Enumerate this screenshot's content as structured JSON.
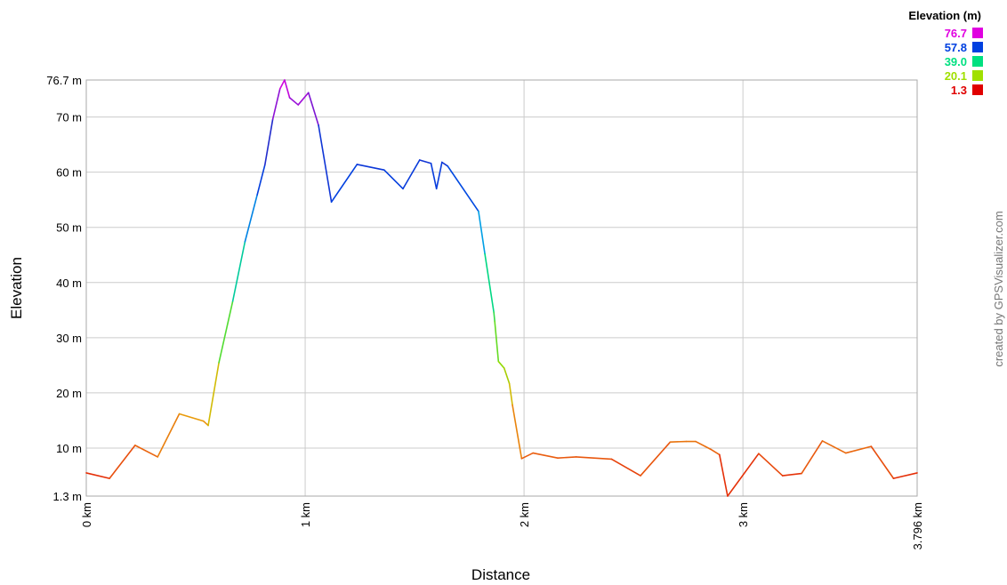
{
  "chart_data": {
    "type": "line",
    "xlabel": "Distance",
    "ylabel": "Elevation",
    "credit": "created by GPSVisualizer.com",
    "xlim": [
      0,
      3.796
    ],
    "ylim": [
      1.3,
      76.7
    ],
    "xticks": [
      {
        "v": 0,
        "label": "0 km"
      },
      {
        "v": 1,
        "label": "1 km"
      },
      {
        "v": 2,
        "label": "2 km"
      },
      {
        "v": 3,
        "label": "3 km"
      },
      {
        "v": 3.796,
        "label": "3.796 km"
      }
    ],
    "yticks": [
      {
        "v": 1.3,
        "label": "1.3 m"
      },
      {
        "v": 10,
        "label": "10 m"
      },
      {
        "v": 20,
        "label": "20 m"
      },
      {
        "v": 30,
        "label": "30 m"
      },
      {
        "v": 40,
        "label": "40 m"
      },
      {
        "v": 50,
        "label": "50 m"
      },
      {
        "v": 60,
        "label": "60 m"
      },
      {
        "v": 70,
        "label": "70 m"
      },
      {
        "v": 76.7,
        "label": "76.7 m"
      }
    ],
    "grid": true,
    "legend": {
      "title": "Elevation (m)",
      "position": "top-right",
      "entries": [
        {
          "label": "76.7",
          "color": "#e000e0"
        },
        {
          "label": "57.8",
          "color": "#0040e0"
        },
        {
          "label": "39.0",
          "color": "#00e080"
        },
        {
          "label": "20.1",
          "color": "#a0e000"
        },
        {
          "label": "1.3",
          "color": "#e00000"
        }
      ]
    },
    "series": [
      {
        "x": [
          0,
          0.106,
          0.223,
          0.326,
          0.425,
          0.535,
          0.557,
          0.606,
          0.669,
          0.725,
          0.781,
          0.816,
          0.852,
          0.885,
          0.906,
          0.929,
          0.968,
          1.015,
          1.061,
          1.12,
          1.237,
          1.361,
          1.447,
          1.523,
          1.575,
          1.6,
          1.625,
          1.651,
          1.792,
          1.821,
          1.862,
          1.866,
          1.883,
          1.909,
          1.933,
          1.947,
          1.989,
          2.041,
          2.154,
          2.238,
          2.4,
          2.532,
          2.668,
          2.741,
          2.784,
          2.852,
          2.893,
          2.93,
          3.072,
          3.181,
          3.268,
          3.363,
          3.47,
          3.586,
          3.688,
          3.796
        ],
        "y": [
          5.5,
          4.5,
          10.5,
          8.4,
          16.2,
          14.9,
          14.1,
          25.5,
          36.6,
          47.4,
          55.9,
          61.3,
          69.6,
          75.1,
          76.7,
          73.5,
          72.2,
          74.4,
          68.5,
          54.6,
          61.4,
          60.4,
          57.0,
          62.2,
          61.6,
          57.0,
          61.8,
          61.1,
          52.9,
          45.2,
          34.6,
          33.0,
          25.7,
          24.5,
          21.7,
          17.8,
          8.1,
          9.1,
          8.2,
          8.4,
          8.0,
          5.0,
          11.1,
          11.2,
          11.2,
          9.8,
          8.8,
          1.3,
          9.0,
          5.0,
          5.4,
          11.3,
          9.1,
          10.3,
          4.5,
          5.5
        ]
      }
    ]
  }
}
